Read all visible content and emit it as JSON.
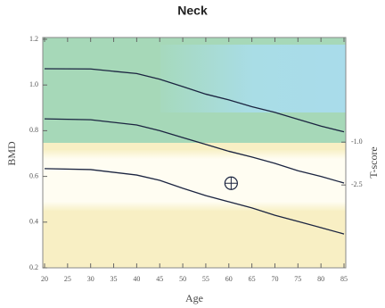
{
  "chart_data": {
    "type": "line",
    "title": "Neck",
    "xlabel": "Age",
    "ylabel": "BMD",
    "y2label": "T-score",
    "x": [
      20,
      30,
      40,
      45,
      50,
      55,
      60,
      65,
      70,
      75,
      80,
      85
    ],
    "series": [
      {
        "color": "#1b2440",
        "values": [
          1.071,
          1.07,
          1.05,
          1.025,
          0.993,
          0.96,
          0.935,
          0.905,
          0.88,
          0.85,
          0.82,
          0.795
        ]
      },
      {
        "color": "#1b2440",
        "values": [
          0.852,
          0.848,
          0.825,
          0.8,
          0.77,
          0.74,
          0.71,
          0.685,
          0.657,
          0.625,
          0.6,
          0.571
        ]
      },
      {
        "color": "#1b2440",
        "values": [
          0.634,
          0.63,
          0.606,
          0.583,
          0.548,
          0.516,
          0.489,
          0.462,
          0.43,
          0.403,
          0.376,
          0.348
        ]
      }
    ],
    "markers": [
      {
        "x": 60.5,
        "y": 0.57,
        "color": "#1b2440"
      }
    ],
    "xlim": [
      20,
      85
    ],
    "xticks": [
      20,
      25,
      30,
      35,
      40,
      45,
      50,
      55,
      60,
      65,
      70,
      75,
      80,
      85
    ],
    "ylim": [
      0.2,
      1.2
    ],
    "yticks": [
      0.2,
      0.4,
      0.6,
      0.8,
      {
        "value": 1,
        "label": "1.0"
      },
      1.2
    ],
    "y2lim": [
      -5.4,
      2.6
    ],
    "y2ticks": [
      {
        "value": -1,
        "label": "-1.0"
      },
      -2.5
    ]
  }
}
